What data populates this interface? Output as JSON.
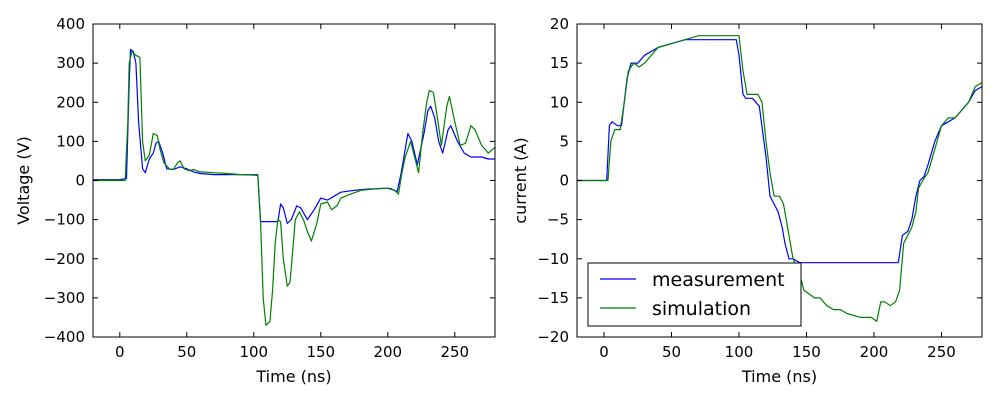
{
  "figure": {
    "colors": {
      "measurement": "#0000ff",
      "simulation": "#008000"
    },
    "legend": {
      "placement": "lower-left",
      "items": [
        "measurement",
        "simulation"
      ]
    }
  },
  "chart_data": [
    {
      "type": "line",
      "title": "",
      "xlabel": "Time (ns)",
      "ylabel": "Voltage (V)",
      "xlim": [
        -20,
        280
      ],
      "ylim": [
        -400,
        400
      ],
      "xticks": [
        0,
        50,
        100,
        150,
        200,
        250
      ],
      "yticks": [
        -400,
        -300,
        -200,
        -100,
        0,
        100,
        200,
        300,
        400
      ],
      "grid": false,
      "legend": null,
      "series": [
        {
          "name": "measurement",
          "color": "#0000ff",
          "points": [
            [
              -20,
              2
            ],
            [
              0,
              2
            ],
            [
              5,
              5
            ],
            [
              7,
              250
            ],
            [
              8,
              335
            ],
            [
              10,
              330
            ],
            [
              12,
              300
            ],
            [
              14,
              150
            ],
            [
              17,
              30
            ],
            [
              19,
              20
            ],
            [
              22,
              55
            ],
            [
              25,
              70
            ],
            [
              27,
              95
            ],
            [
              29,
              100
            ],
            [
              32,
              70
            ],
            [
              35,
              30
            ],
            [
              40,
              28
            ],
            [
              45,
              35
            ],
            [
              50,
              30
            ],
            [
              55,
              22
            ],
            [
              60,
              18
            ],
            [
              70,
              15
            ],
            [
              80,
              15
            ],
            [
              90,
              15
            ],
            [
              100,
              14
            ],
            [
              103,
              13
            ],
            [
              105,
              -105
            ],
            [
              110,
              -105
            ],
            [
              118,
              -105
            ],
            [
              120,
              -60
            ],
            [
              122,
              -70
            ],
            [
              125,
              -110
            ],
            [
              128,
              -100
            ],
            [
              132,
              -65
            ],
            [
              135,
              -70
            ],
            [
              140,
              -100
            ],
            [
              145,
              -75
            ],
            [
              150,
              -45
            ],
            [
              155,
              -50
            ],
            [
              160,
              -40
            ],
            [
              165,
              -30
            ],
            [
              175,
              -25
            ],
            [
              185,
              -22
            ],
            [
              200,
              -20
            ],
            [
              205,
              -25
            ],
            [
              207,
              -28
            ],
            [
              210,
              20
            ],
            [
              213,
              80
            ],
            [
              215,
              120
            ],
            [
              218,
              100
            ],
            [
              222,
              40
            ],
            [
              227,
              120
            ],
            [
              230,
              180
            ],
            [
              232,
              190
            ],
            [
              235,
              160
            ],
            [
              238,
              100
            ],
            [
              241,
              70
            ],
            [
              245,
              130
            ],
            [
              247,
              140
            ],
            [
              252,
              100
            ],
            [
              257,
              70
            ],
            [
              262,
              60
            ],
            [
              270,
              60
            ],
            [
              275,
              55
            ],
            [
              280,
              55
            ]
          ]
        },
        {
          "name": "simulation",
          "color": "#008000",
          "points": [
            [
              -20,
              0
            ],
            [
              0,
              0
            ],
            [
              4,
              0
            ],
            [
              6,
              150
            ],
            [
              7,
              300
            ],
            [
              9,
              330
            ],
            [
              12,
              320
            ],
            [
              15,
              315
            ],
            [
              17,
              100
            ],
            [
              19,
              50
            ],
            [
              22,
              65
            ],
            [
              25,
              120
            ],
            [
              28,
              115
            ],
            [
              30,
              80
            ],
            [
              33,
              45
            ],
            [
              37,
              30
            ],
            [
              40,
              28
            ],
            [
              43,
              45
            ],
            [
              45,
              50
            ],
            [
              48,
              30
            ],
            [
              52,
              25
            ],
            [
              55,
              28
            ],
            [
              60,
              22
            ],
            [
              70,
              20
            ],
            [
              80,
              18
            ],
            [
              90,
              15
            ],
            [
              100,
              15
            ],
            [
              103,
              15
            ],
            [
              105,
              -100
            ],
            [
              107,
              -300
            ],
            [
              109,
              -370
            ],
            [
              112,
              -360
            ],
            [
              114,
              -280
            ],
            [
              116,
              -160
            ],
            [
              118,
              -100
            ],
            [
              120,
              -105
            ],
            [
              122,
              -200
            ],
            [
              125,
              -270
            ],
            [
              127,
              -260
            ],
            [
              129,
              -180
            ],
            [
              131,
              -100
            ],
            [
              134,
              -80
            ],
            [
              137,
              -100
            ],
            [
              140,
              -130
            ],
            [
              143,
              -155
            ],
            [
              147,
              -110
            ],
            [
              150,
              -60
            ],
            [
              155,
              -55
            ],
            [
              158,
              -75
            ],
            [
              162,
              -65
            ],
            [
              165,
              -45
            ],
            [
              172,
              -35
            ],
            [
              180,
              -25
            ],
            [
              195,
              -20
            ],
            [
              202,
              -20
            ],
            [
              205,
              -25
            ],
            [
              208,
              -35
            ],
            [
              210,
              10
            ],
            [
              213,
              60
            ],
            [
              217,
              100
            ],
            [
              220,
              60
            ],
            [
              223,
              20
            ],
            [
              226,
              120
            ],
            [
              229,
              200
            ],
            [
              231,
              230
            ],
            [
              234,
              225
            ],
            [
              237,
              160
            ],
            [
              240,
              90
            ],
            [
              244,
              190
            ],
            [
              246,
              215
            ],
            [
              250,
              150
            ],
            [
              254,
              90
            ],
            [
              258,
              95
            ],
            [
              262,
              140
            ],
            [
              265,
              130
            ],
            [
              270,
              90
            ],
            [
              275,
              70
            ],
            [
              280,
              85
            ]
          ]
        }
      ]
    },
    {
      "type": "line",
      "title": "",
      "xlabel": "Time (ns)",
      "ylabel": "current (A)",
      "xlim": [
        -20,
        280
      ],
      "ylim": [
        -20,
        20
      ],
      "xticks": [
        0,
        50,
        100,
        150,
        200,
        250
      ],
      "yticks": [
        -20,
        -15,
        -10,
        -5,
        0,
        5,
        10,
        15,
        20
      ],
      "grid": false,
      "legend": {
        "placement": "lower-left",
        "entries": [
          "measurement",
          "simulation"
        ]
      },
      "series": [
        {
          "name": "measurement",
          "color": "#0000ff",
          "points": [
            [
              -20,
              0
            ],
            [
              0,
              0
            ],
            [
              2,
              0
            ],
            [
              4,
              7
            ],
            [
              6,
              7.5
            ],
            [
              10,
              7
            ],
            [
              13,
              7
            ],
            [
              17,
              13
            ],
            [
              20,
              15
            ],
            [
              25,
              15
            ],
            [
              30,
              16
            ],
            [
              40,
              17
            ],
            [
              50,
              17.5
            ],
            [
              60,
              18
            ],
            [
              70,
              18
            ],
            [
              80,
              18
            ],
            [
              90,
              18
            ],
            [
              98,
              18
            ],
            [
              100,
              16
            ],
            [
              103,
              11
            ],
            [
              105,
              10.5
            ],
            [
              110,
              10.5
            ],
            [
              115,
              9.5
            ],
            [
              120,
              3
            ],
            [
              123,
              -2
            ],
            [
              126,
              -3
            ],
            [
              129,
              -4
            ],
            [
              132,
              -6
            ],
            [
              134,
              -8
            ],
            [
              137,
              -10
            ],
            [
              140,
              -10
            ],
            [
              145,
              -10.5
            ],
            [
              150,
              -10.5
            ],
            [
              170,
              -10.5
            ],
            [
              190,
              -10.5
            ],
            [
              210,
              -10.5
            ],
            [
              218,
              -10.5
            ],
            [
              221,
              -7
            ],
            [
              225,
              -6.5
            ],
            [
              228,
              -5
            ],
            [
              231,
              -2
            ],
            [
              234,
              0
            ],
            [
              237,
              0.5
            ],
            [
              240,
              2
            ],
            [
              245,
              5
            ],
            [
              250,
              7
            ],
            [
              255,
              7.5
            ],
            [
              260,
              8
            ],
            [
              265,
              9
            ],
            [
              270,
              10
            ],
            [
              275,
              11.5
            ],
            [
              280,
              12
            ]
          ]
        },
        {
          "name": "simulation",
          "color": "#008000",
          "points": [
            [
              -20,
              0
            ],
            [
              0,
              0
            ],
            [
              3,
              0
            ],
            [
              5,
              5
            ],
            [
              8,
              6.5
            ],
            [
              12,
              6.5
            ],
            [
              15,
              10
            ],
            [
              18,
              14
            ],
            [
              22,
              15
            ],
            [
              26,
              14.5
            ],
            [
              30,
              15
            ],
            [
              35,
              16
            ],
            [
              40,
              17
            ],
            [
              50,
              17.5
            ],
            [
              60,
              18
            ],
            [
              70,
              18.5
            ],
            [
              80,
              18.5
            ],
            [
              90,
              18.5
            ],
            [
              100,
              18.5
            ],
            [
              103,
              14
            ],
            [
              106,
              11
            ],
            [
              110,
              11
            ],
            [
              114,
              11
            ],
            [
              117,
              10
            ],
            [
              120,
              5
            ],
            [
              123,
              1
            ],
            [
              126,
              -2
            ],
            [
              130,
              -2
            ],
            [
              133,
              -3
            ],
            [
              136,
              -6
            ],
            [
              140,
              -10
            ],
            [
              145,
              -12
            ],
            [
              148,
              -14
            ],
            [
              152,
              -14.5
            ],
            [
              156,
              -15
            ],
            [
              160,
              -15
            ],
            [
              165,
              -16
            ],
            [
              170,
              -16.5
            ],
            [
              175,
              -16.5
            ],
            [
              180,
              -17
            ],
            [
              190,
              -17.5
            ],
            [
              198,
              -17.5
            ],
            [
              202,
              -18
            ],
            [
              205,
              -15.5
            ],
            [
              208,
              -15.5
            ],
            [
              212,
              -16
            ],
            [
              216,
              -15.5
            ],
            [
              219,
              -14
            ],
            [
              222,
              -8
            ],
            [
              225,
              -7
            ],
            [
              228,
              -6
            ],
            [
              231,
              -4
            ],
            [
              233,
              -1
            ],
            [
              236,
              0
            ],
            [
              240,
              1
            ],
            [
              245,
              4
            ],
            [
              250,
              7
            ],
            [
              255,
              8
            ],
            [
              260,
              8
            ],
            [
              265,
              9
            ],
            [
              270,
              10
            ],
            [
              275,
              12
            ],
            [
              280,
              12.5
            ]
          ]
        }
      ]
    }
  ]
}
